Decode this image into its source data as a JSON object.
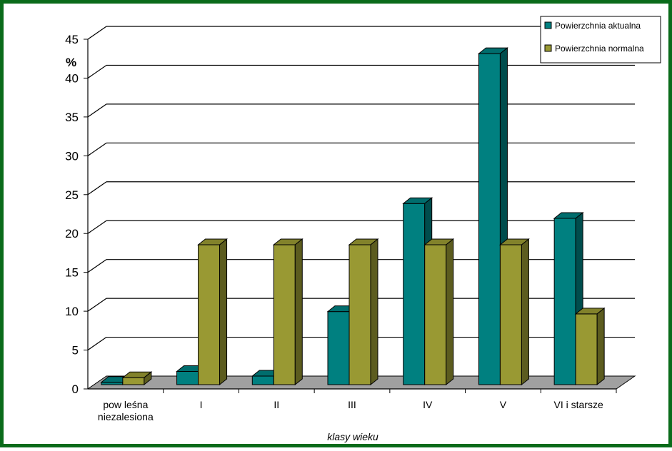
{
  "chart_data": {
    "type": "bar",
    "title": "",
    "xlabel": "klasy wieku",
    "ylabel": "%",
    "ylim": [
      0,
      45
    ],
    "yticks": [
      0,
      5,
      10,
      15,
      20,
      25,
      30,
      35,
      40,
      45
    ],
    "grid": true,
    "legend_position": "top-right",
    "categories": [
      [
        "pow leśna",
        "niezalesiona"
      ],
      [
        "I"
      ],
      [
        "II"
      ],
      [
        "III"
      ],
      [
        "IV"
      ],
      [
        "V"
      ],
      [
        "VI i starsze"
      ]
    ],
    "series": [
      {
        "name": "Powierzchnia aktualna",
        "color": "#008080",
        "values": [
          0.3,
          1.7,
          1.1,
          9.4,
          23.3,
          42.6,
          21.4
        ]
      },
      {
        "name": "Powierzchnia normalna",
        "color": "#999933",
        "values": [
          0.9,
          18.0,
          18.0,
          18.0,
          18.0,
          18.0,
          9.1
        ]
      }
    ]
  }
}
